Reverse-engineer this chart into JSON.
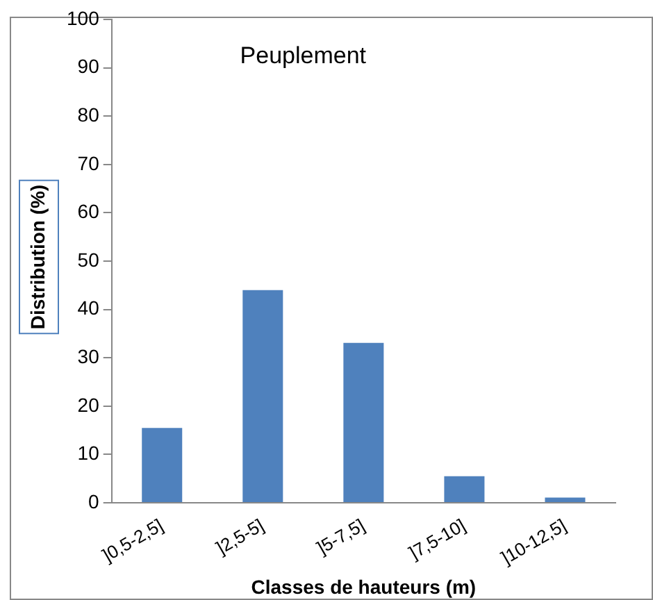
{
  "chart_data": {
    "type": "bar",
    "title": "Peuplement",
    "xlabel": "Classes de hauteurs (m)",
    "ylabel": "Distribution (%)",
    "categories": [
      "]0,5-2,5]",
      "]2,5-5]",
      "]5-7,5]",
      "]7,5-10]",
      "]10-12,5]"
    ],
    "values": [
      15.5,
      44,
      33.1,
      5.5,
      1.1
    ],
    "color": "#4f81bd",
    "ylim": [
      0,
      100
    ],
    "yticks": [
      0,
      10,
      20,
      30,
      40,
      50,
      60,
      70,
      80,
      90,
      100
    ],
    "grid": false,
    "legend": false
  }
}
